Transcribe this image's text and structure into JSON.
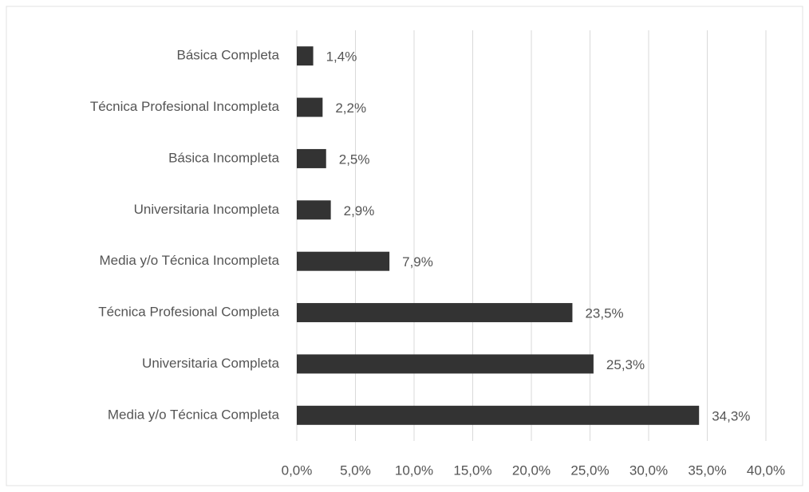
{
  "chart_data": {
    "type": "bar",
    "orientation": "horizontal",
    "categories": [
      "Básica Completa",
      "Técnica Profesional Incompleta",
      "Básica Incompleta",
      "Universitaria Incompleta",
      "Media y/o Técnica Incompleta",
      "Técnica Profesional Completa",
      "Universitaria Completa",
      "Media y/o Técnica Completa"
    ],
    "values": [
      1.4,
      2.2,
      2.5,
      2.9,
      7.9,
      23.5,
      25.3,
      34.3
    ],
    "value_labels": [
      "1,4%",
      "2,2%",
      "2,5%",
      "2,9%",
      "7,9%",
      "23,5%",
      "25,3%",
      "34,3%"
    ],
    "color": "#333333",
    "xlim": [
      0,
      40
    ],
    "xticks": [
      {
        "value": 0,
        "label": "0,0%"
      },
      {
        "value": 5,
        "label": "5,0%"
      },
      {
        "value": 10,
        "label": "10,0%"
      },
      {
        "value": 15,
        "label": "15,0%"
      },
      {
        "value": 20,
        "label": "20,0%"
      },
      {
        "value": 25,
        "label": "25,0%"
      },
      {
        "value": 30,
        "label": "30,0%"
      },
      {
        "value": 35,
        "label": "35,0%"
      },
      {
        "value": 40,
        "label": "40,0%"
      }
    ],
    "grid": true
  }
}
